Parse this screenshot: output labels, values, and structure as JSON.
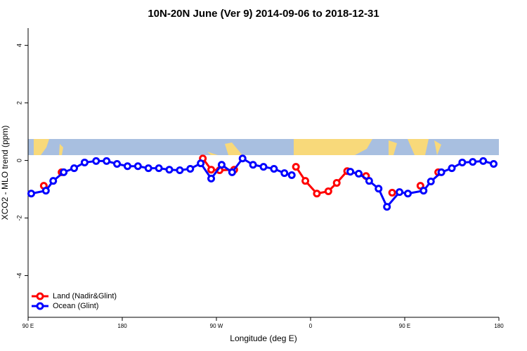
{
  "chart_data": {
    "type": "line",
    "title": "10N-20N June (Ver 9)   2014-09-06 to 2018-12-31",
    "x_label": "Longitude (deg E)",
    "y_label": "XCO2 - MLO trend (ppm)",
    "xlim": [
      90,
      540
    ],
    "xticks": [
      {
        "value": 90,
        "label": "90 E"
      },
      180,
      {
        "value": 270,
        "label": "90 W"
      },
      {
        "value": 360,
        "label": "0"
      },
      {
        "value": 450,
        "label": "90 E"
      },
      {
        "value": 540,
        "label": "180"
      }
    ],
    "ylim": [
      -5.45,
      4.6
    ],
    "yticks": [
      -4,
      -2,
      0,
      2,
      4
    ],
    "legend": "bottom-left",
    "series": [
      {
        "name": "Land (Nadir&Glint)",
        "color": "#ff0000",
        "x": [
          105,
          null,
          122,
          null,
          257,
          265,
          273,
          287,
          null,
          346,
          355,
          366,
          377,
          385,
          395,
          413,
          null,
          438,
          null,
          465,
          null,
          482
        ],
        "values": [
          -0.88,
          null,
          -0.41,
          null,
          0.07,
          -0.32,
          -0.34,
          -0.32,
          null,
          -0.22,
          -0.71,
          -1.15,
          -1.07,
          -0.78,
          -0.37,
          -0.54,
          null,
          -1.12,
          null,
          -0.88,
          null,
          -0.41
        ]
      },
      {
        "name": "Ocean (Glint)",
        "color": "#0000ff",
        "x": [
          93,
          107,
          114,
          124,
          134,
          144,
          155,
          165,
          175,
          185,
          195,
          205,
          215,
          225,
          235,
          245,
          255,
          265,
          275,
          285,
          295,
          305,
          315,
          325,
          335,
          342,
          null,
          398,
          406,
          416,
          425,
          433,
          445,
          453,
          468,
          475,
          485,
          495,
          505,
          515,
          525,
          535
        ],
        "values": [
          -1.15,
          -1.05,
          -0.71,
          -0.41,
          -0.27,
          -0.07,
          -0.02,
          -0.02,
          -0.12,
          -0.2,
          -0.2,
          -0.27,
          -0.27,
          -0.32,
          -0.34,
          -0.29,
          -0.1,
          -0.63,
          -0.15,
          -0.41,
          0.07,
          -0.15,
          -0.22,
          -0.29,
          -0.44,
          -0.51,
          null,
          -0.39,
          -0.46,
          -0.71,
          -0.98,
          -1.61,
          -1.1,
          -1.15,
          -1.05,
          -0.73,
          -0.41,
          -0.27,
          -0.07,
          -0.05,
          -0.02,
          -0.12
        ]
      }
    ]
  }
}
